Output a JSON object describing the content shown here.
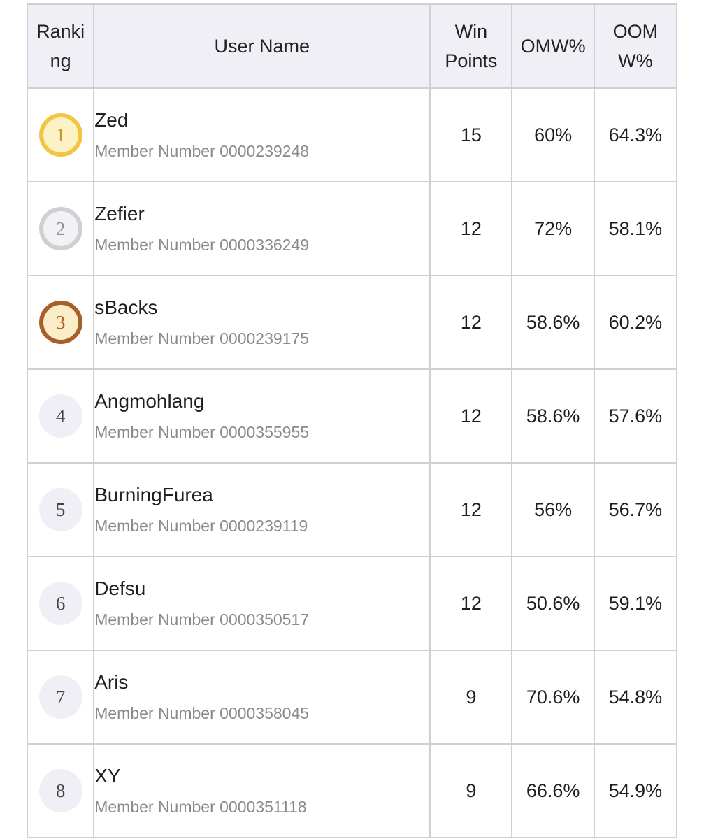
{
  "columns": {
    "ranking": "Ranking",
    "user_name": "User Name",
    "win_points": "Win Points",
    "omw": "OMW%",
    "oomw": "OOMW%"
  },
  "member_prefix": "Member Number",
  "rows": [
    {
      "rank": "1",
      "medal": "gold-medal",
      "name": "Zed",
      "member": "Member Number 0000239248",
      "win_points": "15",
      "omw": "60%",
      "oomw": "64.3%"
    },
    {
      "rank": "2",
      "medal": "silver-medal",
      "name": "Zefier",
      "member": "Member Number 0000336249",
      "win_points": "12",
      "omw": "72%",
      "oomw": "58.1%"
    },
    {
      "rank": "3",
      "medal": "bronze-medal",
      "name": "sBacks",
      "member": "Member Number 0000239175",
      "win_points": "12",
      "omw": "58.6%",
      "oomw": "60.2%"
    },
    {
      "rank": "4",
      "medal": "none",
      "name": "Angmohlang",
      "member": "Member Number 0000355955",
      "win_points": "12",
      "omw": "58.6%",
      "oomw": "57.6%"
    },
    {
      "rank": "5",
      "medal": "none",
      "name": "BurningFurea",
      "member": "Member Number 0000239119",
      "win_points": "12",
      "omw": "56%",
      "oomw": "56.7%"
    },
    {
      "rank": "6",
      "medal": "none",
      "name": "Defsu",
      "member": "Member Number 0000350517",
      "win_points": "12",
      "omw": "50.6%",
      "oomw": "59.1%"
    },
    {
      "rank": "7",
      "medal": "none",
      "name": "Aris",
      "member": "Member Number 0000358045",
      "win_points": "9",
      "omw": "70.6%",
      "oomw": "54.8%"
    },
    {
      "rank": "8",
      "medal": "none",
      "name": "XY",
      "member": "Member Number 0000351118",
      "win_points": "9",
      "omw": "66.6%",
      "oomw": "54.9%"
    }
  ],
  "colors": {
    "header_bg": "#efeff5",
    "border": "#cfcfd6",
    "gold": "#f2c542",
    "silver": "#cfcfd4",
    "bronze": "#a8602a",
    "secondary_text": "#8a8a8a"
  }
}
